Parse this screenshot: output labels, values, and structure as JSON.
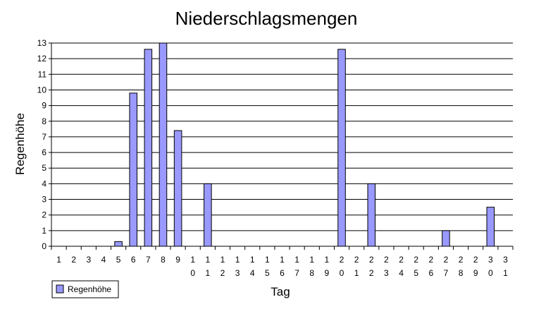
{
  "chart_data": {
    "type": "bar",
    "title": "Niederschlagsmengen",
    "xlabel": "Tag",
    "ylabel": "Regenhöhe",
    "ylim": [
      0,
      13
    ],
    "yticks": [
      "0",
      "1",
      "2",
      "3",
      "4",
      "5",
      "6",
      "7",
      "8",
      "9",
      "10",
      "11",
      "12",
      "13"
    ],
    "grid": true,
    "legend_position": "bottom-left",
    "categories": [
      "1",
      "2",
      "3",
      "4",
      "5",
      "6",
      "7",
      "8",
      "9",
      "10",
      "11",
      "12",
      "13",
      "14",
      "15",
      "16",
      "17",
      "18",
      "19",
      "20",
      "21",
      "22",
      "23",
      "24",
      "25",
      "26",
      "27",
      "28",
      "29",
      "30",
      "31"
    ],
    "series": [
      {
        "name": "Regenhöhe",
        "color": "#9999ff",
        "values": [
          0,
          0,
          0,
          0,
          0.3,
          9.8,
          12.6,
          13,
          7.4,
          0,
          4,
          0,
          0,
          0,
          0,
          0,
          0,
          0,
          0,
          12.6,
          0,
          4,
          0,
          0,
          0,
          0,
          1,
          0,
          0,
          2.5,
          0
        ]
      }
    ]
  }
}
